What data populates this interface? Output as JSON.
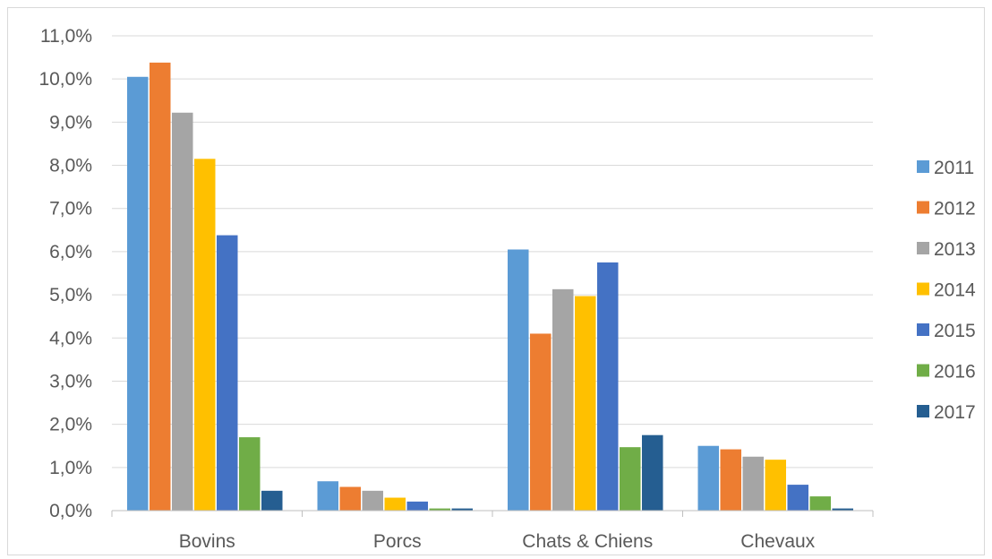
{
  "chart_data": {
    "type": "bar",
    "title": "",
    "xlabel": "",
    "ylabel": "",
    "ylim": [
      0,
      11
    ],
    "yticks": [
      "0,0%",
      "1,0%",
      "2,0%",
      "3,0%",
      "4,0%",
      "5,0%",
      "6,0%",
      "7,0%",
      "8,0%",
      "9,0%",
      "10,0%",
      "11,0%"
    ],
    "grid": true,
    "legend_position": "right",
    "categories": [
      "Bovins",
      "Porcs",
      "Chats & Chiens",
      "Chevaux"
    ],
    "series": [
      {
        "name": "2011",
        "color": "#5b9bd5",
        "values": [
          10.05,
          0.68,
          6.05,
          1.5
        ]
      },
      {
        "name": "2012",
        "color": "#ed7d31",
        "values": [
          10.38,
          0.55,
          4.1,
          1.42
        ]
      },
      {
        "name": "2013",
        "color": "#a5a5a5",
        "values": [
          9.22,
          0.46,
          5.13,
          1.25
        ]
      },
      {
        "name": "2014",
        "color": "#ffc000",
        "values": [
          8.15,
          0.3,
          4.97,
          1.18
        ]
      },
      {
        "name": "2015",
        "color": "#4472c4",
        "values": [
          6.38,
          0.21,
          5.75,
          0.6
        ]
      },
      {
        "name": "2016",
        "color": "#70ad47",
        "values": [
          1.7,
          0.05,
          1.47,
          0.33
        ]
      },
      {
        "name": "2017",
        "color": "#255e91",
        "values": [
          0.46,
          0.05,
          1.75,
          0.05
        ]
      }
    ]
  }
}
